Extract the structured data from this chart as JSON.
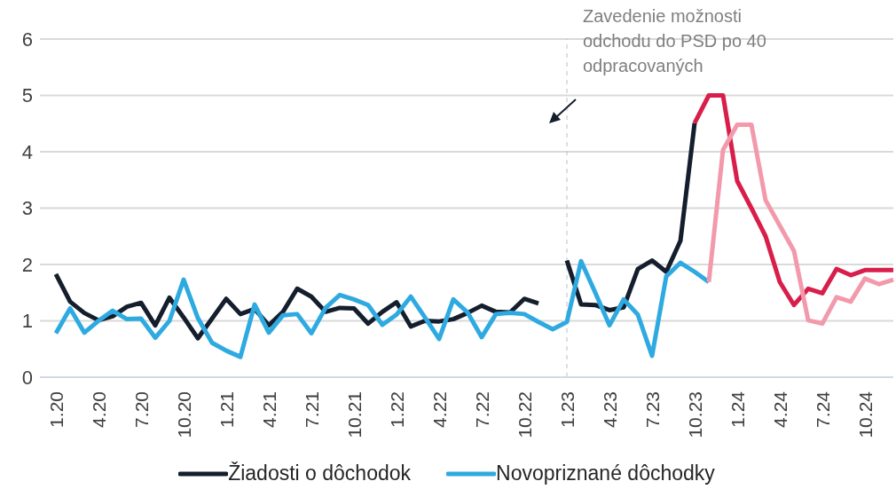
{
  "chart_data": {
    "type": "line",
    "categories": [
      "1.20",
      null,
      null,
      "4.20",
      null,
      null,
      "7.20",
      null,
      null,
      "10.20",
      null,
      null,
      "1.21",
      null,
      null,
      "4.21",
      null,
      null,
      "7.21",
      null,
      null,
      "10.21",
      null,
      null,
      "1.22",
      null,
      null,
      "4.22",
      null,
      null,
      "7.22",
      null,
      null,
      "10.22",
      null,
      null,
      "1.23",
      null,
      null,
      "4.23",
      null,
      null,
      "7.23",
      null,
      null,
      "10.23",
      null,
      null,
      "1.24",
      null,
      null,
      "4.24",
      null,
      null,
      "7.24",
      null,
      null,
      "10.24",
      null,
      null
    ],
    "series": [
      {
        "name": "Žiadosti o dôchodok",
        "color": "#141e2d",
        "values": [
          1.83,
          1.34,
          1.14,
          1.01,
          1.08,
          1.25,
          1.32,
          0.92,
          1.41,
          1.06,
          0.69,
          1.04,
          1.39,
          1.12,
          1.21,
          0.92,
          1.16,
          1.57,
          1.43,
          1.16,
          1.23,
          1.22,
          0.95,
          1.16,
          1.33,
          0.9,
          1.0,
          0.99,
          1.03,
          1.14,
          1.27,
          1.16,
          1.15,
          1.39,
          1.31,
          null,
          2.07,
          1.29,
          1.28,
          1.19,
          1.24,
          1.92,
          2.07,
          1.87,
          2.42,
          4.51,
          null,
          null,
          null,
          null,
          null,
          null,
          null,
          null,
          null,
          null,
          null,
          null,
          null,
          null
        ]
      },
      {
        "color": "#d81e4a",
        "values": [
          null,
          null,
          null,
          null,
          null,
          null,
          null,
          null,
          null,
          null,
          null,
          null,
          null,
          null,
          null,
          null,
          null,
          null,
          null,
          null,
          null,
          null,
          null,
          null,
          null,
          null,
          null,
          null,
          null,
          null,
          null,
          null,
          null,
          null,
          null,
          null,
          null,
          null,
          null,
          null,
          null,
          null,
          null,
          null,
          null,
          4.51,
          5.0,
          5.0,
          3.48,
          3.0,
          2.5,
          1.69,
          1.28,
          1.57,
          1.49,
          1.92,
          1.81,
          1.9,
          1.9,
          1.9
        ]
      },
      {
        "name": "Novopriznané dôchodky",
        "color": "#2eaae1",
        "values": [
          0.78,
          1.22,
          0.79,
          1.0,
          1.18,
          1.03,
          1.04,
          0.7,
          1.0,
          1.73,
          1.05,
          0.61,
          0.47,
          0.36,
          1.29,
          0.79,
          1.1,
          1.12,
          0.78,
          1.23,
          1.46,
          1.38,
          1.28,
          0.93,
          1.11,
          1.43,
          1.06,
          0.68,
          1.38,
          1.15,
          0.71,
          1.12,
          1.14,
          1.12,
          0.98,
          0.85,
          0.98,
          2.06,
          1.5,
          0.92,
          1.38,
          1.11,
          0.38,
          1.79,
          2.03,
          1.87,
          1.69,
          null,
          null,
          null,
          null,
          null,
          null,
          null,
          null,
          null,
          null,
          null,
          null,
          null
        ]
      },
      {
        "color": "#f29aac",
        "values": [
          null,
          null,
          null,
          null,
          null,
          null,
          null,
          null,
          null,
          null,
          null,
          null,
          null,
          null,
          null,
          null,
          null,
          null,
          null,
          null,
          null,
          null,
          null,
          null,
          null,
          null,
          null,
          null,
          null,
          null,
          null,
          null,
          null,
          null,
          null,
          null,
          null,
          null,
          null,
          null,
          null,
          null,
          null,
          null,
          null,
          null,
          1.69,
          4.03,
          4.48,
          4.48,
          3.14,
          2.69,
          2.24,
          1.01,
          0.95,
          1.42,
          1.34,
          1.75,
          1.65,
          1.73
        ]
      }
    ],
    "ylim": [
      0,
      6
    ],
    "yticks": [
      0,
      1,
      2,
      3,
      4,
      5,
      6
    ],
    "grid": "y",
    "legend": "bottom",
    "ref_lines": [
      {
        "axis": "x",
        "value": "1.23",
        "label": "Zavedenie možnosti odchodu do PSD po 40 odpracovaných",
        "color": "#bfbfbf",
        "line_style": "dashed"
      }
    ]
  }
}
